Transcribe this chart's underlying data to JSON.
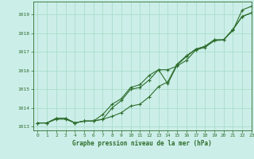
{
  "title": "Graphe pression niveau de la mer (hPa)",
  "bg_color": "#cceee8",
  "grid_color": "#aaddcc",
  "line_color": "#2d6e2d",
  "text_color": "#2d6e2d",
  "xlim": [
    -0.5,
    23
  ],
  "ylim": [
    1012.8,
    1019.7
  ],
  "yticks": [
    1013,
    1014,
    1015,
    1016,
    1017,
    1018,
    1019
  ],
  "xticks": [
    0,
    1,
    2,
    3,
    4,
    5,
    6,
    7,
    8,
    9,
    10,
    11,
    12,
    13,
    14,
    15,
    16,
    17,
    18,
    19,
    20,
    21,
    22,
    23
  ],
  "series1": [
    1013.2,
    1013.2,
    1013.4,
    1013.4,
    1013.2,
    1013.3,
    1013.3,
    1013.4,
    1014.0,
    1014.4,
    1015.0,
    1015.1,
    1015.5,
    1016.05,
    1016.05,
    1016.25,
    1016.55,
    1017.1,
    1017.25,
    1017.6,
    1017.65,
    1018.15,
    1019.25,
    1019.45
  ],
  "series2": [
    1013.2,
    1013.2,
    1013.45,
    1013.45,
    1013.2,
    1013.3,
    1013.3,
    1013.65,
    1014.2,
    1014.5,
    1015.1,
    1015.25,
    1015.75,
    1016.05,
    1015.3,
    1016.3,
    1016.75,
    1017.15,
    1017.3,
    1017.65,
    1017.65,
    1018.2,
    1018.9,
    1019.1
  ],
  "series3": [
    1013.2,
    1013.2,
    1013.45,
    1013.45,
    1013.2,
    1013.3,
    1013.3,
    1013.4,
    1013.55,
    1013.75,
    1014.1,
    1014.2,
    1014.6,
    1015.15,
    1015.4,
    1016.35,
    1016.8,
    1017.15,
    1017.3,
    1017.65,
    1017.65,
    1018.2,
    1018.9,
    1019.1
  ]
}
